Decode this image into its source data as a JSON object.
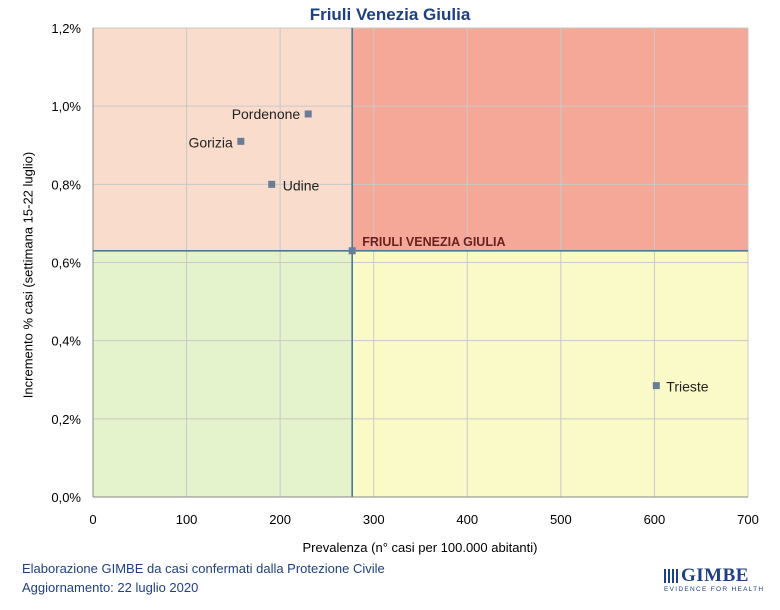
{
  "chart_data": {
    "type": "scatter",
    "title": "Friuli Venezia Giulia",
    "xlabel": "Prevalenza  (n° casi per 100.000 abitanti)",
    "ylabel": "Incremento % casi (settimana 15-22 luglio)",
    "xlim": [
      0,
      700
    ],
    "ylim": [
      0,
      1.2
    ],
    "x_ticks": [
      "0",
      "100",
      "200",
      "300",
      "400",
      "500",
      "600",
      "700"
    ],
    "y_ticks": [
      "0,0%",
      "0,2%",
      "0,4%",
      "0,6%",
      "0,8%",
      "1,0%",
      "1,2%"
    ],
    "grid": true,
    "quadrant_colors": {
      "top_left": "#f9dccb",
      "top_right": "#f5a898",
      "bottom_left": "#e4f3cc",
      "bottom_right": "#fafac8"
    },
    "reference_lines": {
      "x": 277,
      "y": 0.63
    },
    "points": [
      {
        "label": "Pordenone",
        "x": 230,
        "y": 0.98
      },
      {
        "label": "Gorizia",
        "x": 158,
        "y": 0.91
      },
      {
        "label": "Udine",
        "x": 191,
        "y": 0.8
      },
      {
        "label": "FRIULI VENEZIA GIULIA",
        "x": 277,
        "y": 0.63,
        "highlight": true
      },
      {
        "label": "Trieste",
        "x": 602,
        "y": 0.285
      }
    ]
  },
  "footer": {
    "line1": "Elaborazione GIMBE da casi confermati dalla Protezione Civile",
    "line2": "Aggiornamento: 22 luglio 2020"
  },
  "logo": {
    "word": "GIMBE",
    "tagline": "EVIDENCE FOR HEALTH"
  },
  "colors": {
    "title": "#1f3f83",
    "marker": "#6a7d96",
    "reference_line": "#4a7a95",
    "highlight_label": "#6b1f1f"
  }
}
